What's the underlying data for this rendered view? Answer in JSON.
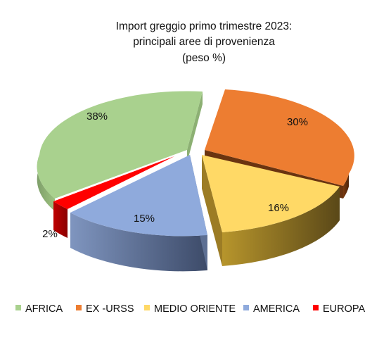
{
  "chart_data": {
    "type": "pie",
    "title_lines": [
      "Import greggio primo trimestre 2023:",
      "principali aree di provenienza",
      "(peso %)"
    ],
    "slices": [
      {
        "label": "AFRICA",
        "value": 38,
        "display": "38%",
        "color": "#a9d18e"
      },
      {
        "label": "EX -URSS",
        "value": 30,
        "display": "30%",
        "color": "#ed7d31"
      },
      {
        "label": "MEDIO ORIENTE",
        "value": 16,
        "display": "16%",
        "color": "#ffd966"
      },
      {
        "label": "AMERICA",
        "value": 15,
        "display": "15%",
        "color": "#8faadc"
      },
      {
        "label": "EUROPA",
        "value": 2,
        "display": "2%",
        "color": "#ff0000"
      }
    ],
    "legend_position": "bottom",
    "style": "3d-exploded"
  }
}
